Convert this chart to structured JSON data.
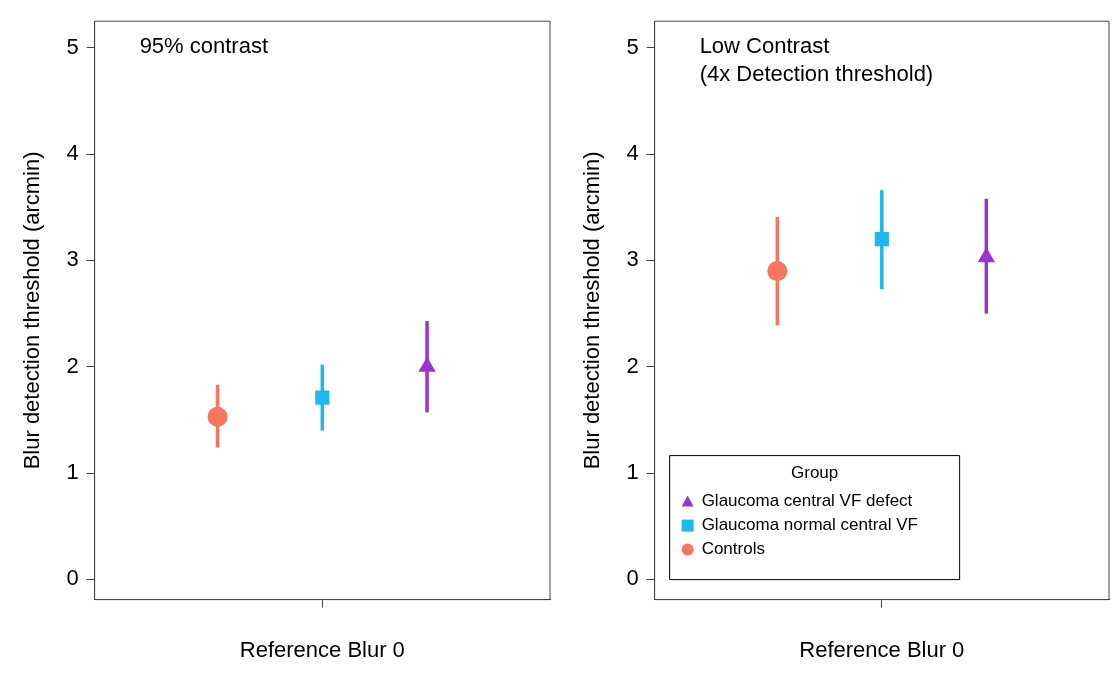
{
  "chart_data": [
    {
      "type": "scatter",
      "categories": [
        "Reference Blur 0"
      ],
      "ylabel": "Blur detection threshold (arcmin)",
      "ylim": [
        -0.19,
        5.25
      ],
      "yticks": [
        0,
        1,
        2,
        3,
        4,
        5
      ],
      "grid": false,
      "legend": false,
      "annotations": [
        "95% contrast"
      ],
      "series": [
        {
          "color": "#f8765f",
          "marker": "circle",
          "values": [
            1.53
          ],
          "errors": [
            [
              1.24,
              1.83
            ]
          ]
        },
        {
          "color": "#1cb8ef",
          "marker": "square",
          "values": [
            1.71
          ],
          "errors": [
            [
              1.4,
              2.02
            ]
          ]
        },
        {
          "color": "#9a33d0",
          "marker": "triangle",
          "values": [
            2.0
          ],
          "errors": [
            [
              1.57,
              2.43
            ]
          ]
        }
      ]
    },
    {
      "type": "scatter",
      "categories": [
        "Reference Blur 0"
      ],
      "ylabel": "Blur detection threshold (arcmin)",
      "ylim": [
        -0.19,
        5.25
      ],
      "yticks": [
        0,
        1,
        2,
        3,
        4,
        5
      ],
      "grid": false,
      "legend": "bottom left",
      "legend_title": "Group",
      "annotations": [
        "Low Contrast",
        "(4x Detection threshold)"
      ],
      "series": [
        {
          "name": "Controls",
          "color": "#f8765f",
          "marker": "circle",
          "values": [
            2.9
          ],
          "errors": [
            [
              2.39,
              3.41
            ]
          ]
        },
        {
          "name": "Glaucoma normal central VF",
          "color": "#1cb8ef",
          "marker": "square",
          "values": [
            3.2
          ],
          "errors": [
            [
              2.73,
              3.66
            ]
          ]
        },
        {
          "name": "Glaucoma central VF defect",
          "color": "#9a33d0",
          "marker": "triangle",
          "values": [
            3.03
          ],
          "errors": [
            [
              2.5,
              3.58
            ]
          ]
        }
      ]
    }
  ]
}
